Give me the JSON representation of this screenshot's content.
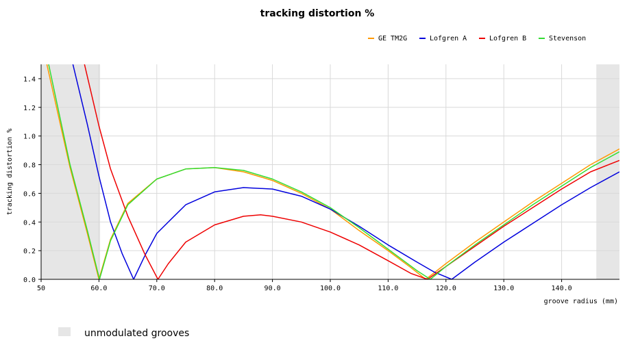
{
  "chart_data": {
    "type": "line",
    "title": "tracking distortion %",
    "xlabel": "groove radius (mm)",
    "ylabel": "tracking distortion %",
    "xlim": [
      50,
      150
    ],
    "ylim": [
      0,
      1.5
    ],
    "x_ticks": [
      "50",
      "60.0",
      "70.0",
      "80.0",
      "90.0",
      "100.0",
      "110.0",
      "120.0",
      "130.0",
      "140.0"
    ],
    "y_ticks": [
      "0.0",
      "0.2",
      "0.4",
      "0.6",
      "0.8",
      "1.0",
      "1.2",
      "1.4"
    ],
    "grid": true,
    "legend_position": "top-right",
    "shaded_regions": [
      {
        "from": 50,
        "to": 60.2
      },
      {
        "from": 146,
        "to": 150
      }
    ],
    "shaded_label": "unmodulated grooves",
    "shaded_color": "#e6e6e6",
    "series": [
      {
        "name": "GE TM2G",
        "color": "#ff9900",
        "nulls": [
          60.0,
          116.5
        ],
        "points": [
          [
            51,
            1.5
          ],
          [
            55,
            0.78
          ],
          [
            58,
            0.32
          ],
          [
            60,
            0.0
          ],
          [
            62,
            0.28
          ],
          [
            65,
            0.53
          ],
          [
            70,
            0.7
          ],
          [
            75,
            0.77
          ],
          [
            80,
            0.78
          ],
          [
            85,
            0.75
          ],
          [
            90,
            0.69
          ],
          [
            95,
            0.6
          ],
          [
            100,
            0.49
          ],
          [
            105,
            0.34
          ],
          [
            110,
            0.2
          ],
          [
            114,
            0.08
          ],
          [
            116.5,
            0.0
          ],
          [
            120,
            0.11
          ],
          [
            125,
            0.26
          ],
          [
            130,
            0.4
          ],
          [
            135,
            0.54
          ],
          [
            140,
            0.67
          ],
          [
            145,
            0.8
          ],
          [
            150,
            0.91
          ]
        ]
      },
      {
        "name": "Lofgren A",
        "color": "#0000dd",
        "nulls": [
          66.0,
          121.0
        ],
        "points": [
          [
            55.5,
            1.5
          ],
          [
            58,
            1.08
          ],
          [
            60,
            0.72
          ],
          [
            62,
            0.4
          ],
          [
            64,
            0.18
          ],
          [
            66,
            0.0
          ],
          [
            68,
            0.17
          ],
          [
            70,
            0.32
          ],
          [
            75,
            0.52
          ],
          [
            80,
            0.61
          ],
          [
            85,
            0.64
          ],
          [
            90,
            0.63
          ],
          [
            95,
            0.58
          ],
          [
            100,
            0.49
          ],
          [
            105,
            0.37
          ],
          [
            110,
            0.24
          ],
          [
            115,
            0.12
          ],
          [
            118,
            0.05
          ],
          [
            121,
            0.0
          ],
          [
            125,
            0.12
          ],
          [
            130,
            0.26
          ],
          [
            135,
            0.39
          ],
          [
            140,
            0.52
          ],
          [
            145,
            0.64
          ],
          [
            150,
            0.75
          ]
        ]
      },
      {
        "name": "Lofgren B",
        "color": "#ee0000",
        "nulls": [
          70.2,
          116.8
        ],
        "points": [
          [
            57.5,
            1.5
          ],
          [
            60,
            1.07
          ],
          [
            62,
            0.77
          ],
          [
            65,
            0.44
          ],
          [
            68,
            0.17
          ],
          [
            70.2,
            0.0
          ],
          [
            72,
            0.11
          ],
          [
            75,
            0.26
          ],
          [
            80,
            0.38
          ],
          [
            85,
            0.44
          ],
          [
            88,
            0.45
          ],
          [
            90,
            0.44
          ],
          [
            95,
            0.4
          ],
          [
            100,
            0.33
          ],
          [
            105,
            0.24
          ],
          [
            110,
            0.13
          ],
          [
            114,
            0.04
          ],
          [
            116.8,
            0.0
          ],
          [
            120,
            0.09
          ],
          [
            125,
            0.23
          ],
          [
            130,
            0.37
          ],
          [
            135,
            0.5
          ],
          [
            140,
            0.63
          ],
          [
            145,
            0.75
          ],
          [
            150,
            0.83
          ]
        ]
      },
      {
        "name": "Stevenson",
        "color": "#33dd33",
        "nulls": [
          60.1,
          117.3
        ],
        "points": [
          [
            51.3,
            1.5
          ],
          [
            55,
            0.8
          ],
          [
            58,
            0.34
          ],
          [
            60.1,
            0.0
          ],
          [
            62,
            0.27
          ],
          [
            65,
            0.52
          ],
          [
            70,
            0.7
          ],
          [
            75,
            0.77
          ],
          [
            80,
            0.78
          ],
          [
            85,
            0.76
          ],
          [
            90,
            0.7
          ],
          [
            95,
            0.61
          ],
          [
            100,
            0.5
          ],
          [
            105,
            0.36
          ],
          [
            110,
            0.21
          ],
          [
            115,
            0.06
          ],
          [
            117.3,
            0.0
          ],
          [
            120,
            0.09
          ],
          [
            125,
            0.24
          ],
          [
            130,
            0.38
          ],
          [
            135,
            0.52
          ],
          [
            140,
            0.65
          ],
          [
            145,
            0.78
          ],
          [
            150,
            0.89
          ]
        ]
      }
    ]
  }
}
